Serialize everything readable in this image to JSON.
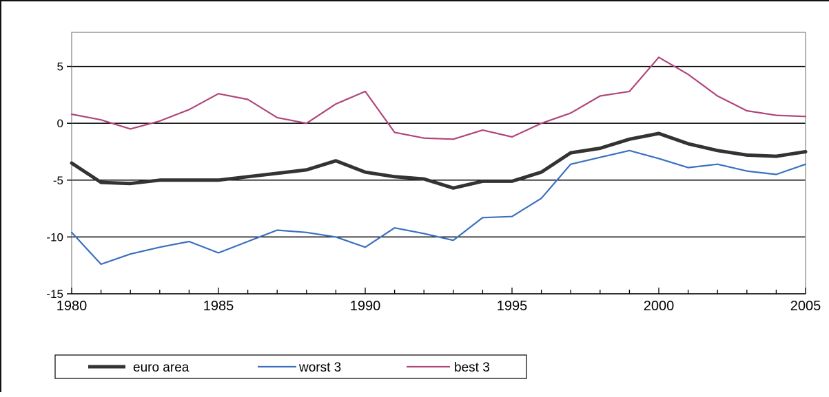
{
  "chart_data": {
    "type": "line",
    "title": "",
    "xlabel": "",
    "ylabel": "",
    "xlim": [
      1980,
      2005
    ],
    "ylim": [
      -15,
      8
    ],
    "grid": "horizontal",
    "legend_position": "bottom-left",
    "x_ticks": [
      "1980",
      "1985",
      "1990",
      "1995",
      "2000",
      "2005"
    ],
    "y_ticks": [
      "5",
      "0",
      "-5",
      "-10",
      "-15"
    ],
    "x": [
      1980,
      1981,
      1982,
      1983,
      1984,
      1985,
      1986,
      1987,
      1988,
      1989,
      1990,
      1991,
      1992,
      1993,
      1994,
      1995,
      1996,
      1997,
      1998,
      1999,
      2000,
      2001,
      2002,
      2003,
      2004,
      2005
    ],
    "series": [
      {
        "name": "euro area",
        "color": "#333333",
        "values": [
          -3.5,
          -5.2,
          -5.3,
          -5.0,
          -5.0,
          -5.0,
          -4.7,
          -4.4,
          -4.1,
          -3.3,
          -4.3,
          -4.7,
          -4.9,
          -5.7,
          -5.1,
          -5.1,
          -4.3,
          -2.6,
          -2.2,
          -1.4,
          -0.9,
          -1.8,
          -2.4,
          -2.8,
          -2.9,
          -2.5
        ]
      },
      {
        "name": "worst 3",
        "color": "#3a6fc0",
        "values": [
          -9.6,
          -12.4,
          -11.5,
          -10.9,
          -10.4,
          -11.4,
          -10.4,
          -9.4,
          -9.6,
          -10.0,
          -10.9,
          -9.2,
          -9.7,
          -10.3,
          -8.3,
          -8.2,
          -6.6,
          -3.6,
          -3.0,
          -2.4,
          -3.1,
          -3.9,
          -3.6,
          -4.2,
          -4.5,
          -3.6
        ]
      },
      {
        "name": "best 3",
        "color": "#b0457a",
        "values": [
          0.8,
          0.3,
          -0.5,
          0.2,
          1.2,
          2.6,
          2.1,
          0.5,
          0.0,
          1.7,
          2.8,
          -0.8,
          -1.3,
          -1.4,
          -0.6,
          -1.2,
          0.0,
          0.9,
          2.4,
          2.8,
          5.8,
          4.3,
          2.4,
          1.1,
          0.7,
          0.6
        ]
      }
    ]
  }
}
